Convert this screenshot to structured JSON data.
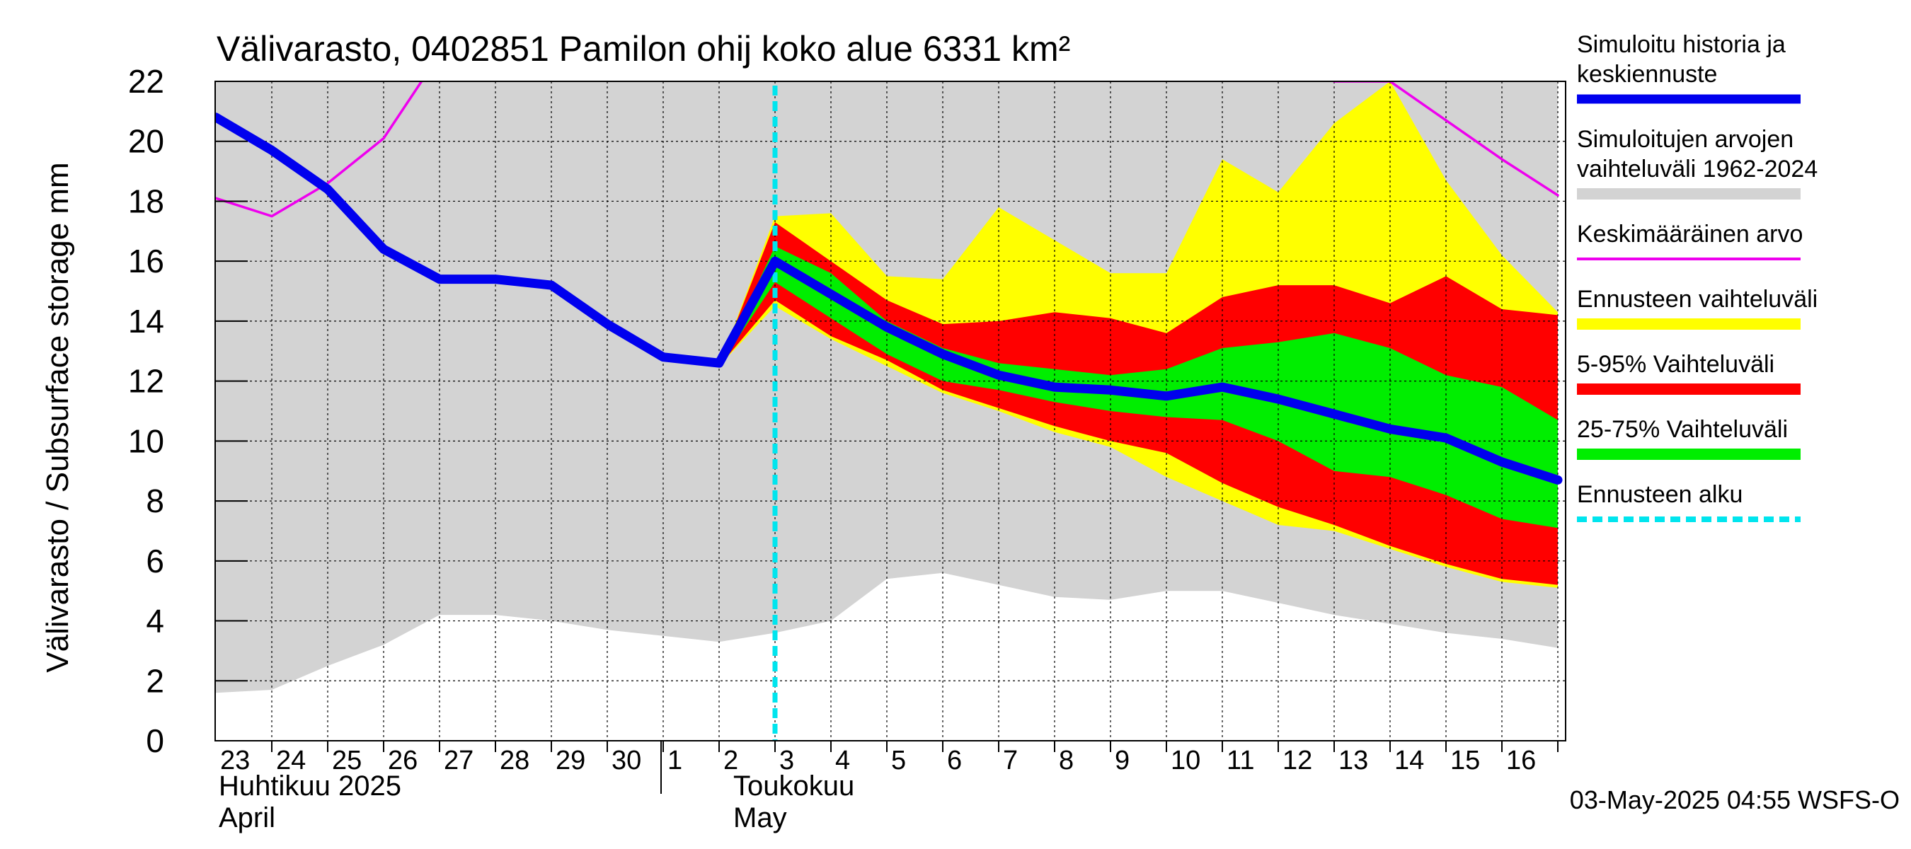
{
  "chart_data": {
    "type": "area",
    "title": "Välivarasto, 0402851 Pamilon ohij koko alue 6331 km²",
    "ylabel": "Välivarasto / Subsurface storage  mm",
    "ylim": [
      0,
      22
    ],
    "yticks": [
      0,
      2,
      4,
      6,
      8,
      10,
      12,
      14,
      16,
      18,
      20,
      22
    ],
    "grid": true,
    "legend_position": "right",
    "x_dates": [
      "2025-04-23",
      "2025-04-24",
      "2025-04-25",
      "2025-04-26",
      "2025-04-27",
      "2025-04-28",
      "2025-04-29",
      "2025-04-30",
      "2025-05-01",
      "2025-05-02",
      "2025-05-03",
      "2025-05-04",
      "2025-05-05",
      "2025-05-06",
      "2025-05-07",
      "2025-05-08",
      "2025-05-09",
      "2025-05-10",
      "2025-05-11",
      "2025-05-12",
      "2025-05-13",
      "2025-05-14",
      "2025-05-15",
      "2025-05-16",
      "2025-05-17"
    ],
    "day_labels": [
      "23",
      "24",
      "25",
      "26",
      "27",
      "28",
      "29",
      "30",
      "1",
      "2",
      "3",
      "4",
      "5",
      "6",
      "7",
      "8",
      "9",
      "10",
      "11",
      "12",
      "13",
      "14",
      "15",
      "16"
    ],
    "month_labels": [
      {
        "fi": "Huhtikuu  2025",
        "en": "April"
      },
      {
        "fi": "Toukokuu",
        "en": "May"
      }
    ],
    "forecast_start": "2025-05-03",
    "series": [
      {
        "name": "Simuloitujen arvojen vaihteluväli 1962-2024",
        "color": "#d3d3d3",
        "lower": [
          1.6,
          1.7,
          2.5,
          3.2,
          4.2,
          4.2,
          4.0,
          3.7,
          3.5,
          3.3,
          3.6,
          4.0,
          5.4,
          5.6,
          5.2,
          4.8,
          4.7,
          5.0,
          5.0,
          4.6,
          4.2,
          3.9,
          3.6,
          3.4,
          3.1
        ],
        "upper": [
          22,
          22,
          22,
          22,
          22,
          22,
          22,
          22,
          22,
          22,
          22,
          22,
          22,
          22,
          22,
          22,
          22,
          22,
          22,
          22,
          22,
          22,
          22,
          22,
          22
        ]
      },
      {
        "name": "Ennusteen vaihteluväli",
        "color": "#ffff00",
        "lower": [
          12.5,
          14.5,
          13.4,
          12.5,
          11.6,
          11.0,
          10.3,
          9.8,
          8.8,
          8.0,
          7.2,
          7.0,
          6.4,
          5.8,
          5.3,
          5.1
        ],
        "upper": [
          12.5,
          17.5,
          17.6,
          15.5,
          15.4,
          17.8,
          16.7,
          15.6,
          15.6,
          19.4,
          18.3,
          20.6,
          22.0,
          18.7,
          16.2,
          14.3
        ]
      },
      {
        "name": "5-95% Vaihteluväli",
        "color": "#ff0000",
        "lower": [
          12.5,
          14.7,
          13.5,
          12.7,
          11.7,
          11.1,
          10.5,
          10.0,
          9.6,
          8.6,
          7.8,
          7.2,
          6.5,
          5.9,
          5.4,
          5.2
        ],
        "upper": [
          12.5,
          17.3,
          16.0,
          14.7,
          13.9,
          14.0,
          14.3,
          14.1,
          13.6,
          14.8,
          15.2,
          15.2,
          14.6,
          15.5,
          14.4,
          14.2
        ]
      },
      {
        "name": "25-75% Vaihteluväli",
        "color": "#00ee00",
        "lower": [
          12.5,
          15.3,
          14.1,
          12.9,
          12.0,
          11.7,
          11.3,
          11.0,
          10.8,
          10.7,
          10.0,
          9.0,
          8.8,
          8.2,
          7.4,
          7.1
        ],
        "upper": [
          12.5,
          16.5,
          15.6,
          14.0,
          13.1,
          12.6,
          12.4,
          12.2,
          12.4,
          13.1,
          13.3,
          13.6,
          13.1,
          12.2,
          11.8,
          10.7
        ]
      },
      {
        "name": "Keskimääräinen arvo",
        "color": "#ee00ee",
        "values": [
          18.1,
          17.5,
          18.6,
          20.1,
          22.9,
          null,
          null,
          null,
          null,
          null,
          null,
          null,
          null,
          null,
          null,
          null,
          null,
          null,
          null,
          22.8,
          22.0,
          22.0,
          20.7,
          19.4,
          18.2
        ]
      },
      {
        "name": "Simuloitu historia ja keskiennuste",
        "color": "#0000ee",
        "values": [
          20.8,
          19.7,
          18.4,
          16.4,
          15.4,
          15.4,
          15.2,
          13.9,
          12.8,
          12.6,
          16.0,
          14.9,
          13.8,
          12.9,
          12.2,
          11.8,
          11.7,
          11.5,
          11.8,
          11.4,
          10.9,
          10.4,
          10.1,
          9.3,
          8.7
        ]
      }
    ],
    "legend": [
      {
        "lines": [
          "Simuloitu historia ja",
          "keskiennuste"
        ],
        "color": "#0000ee",
        "style": "thick"
      },
      {
        "lines": [
          "Simuloitujen arvojen",
          "vaihteluväli 1962-2024"
        ],
        "color": "#d3d3d3",
        "style": "band"
      },
      {
        "lines": [
          "Keskimääräinen arvo"
        ],
        "color": "#ee00ee",
        "style": "thin"
      },
      {
        "lines": [
          "Ennusteen vaihteluväli"
        ],
        "color": "#ffff00",
        "style": "band"
      },
      {
        "lines": [
          "5-95% Vaihteluväli"
        ],
        "color": "#ff0000",
        "style": "band"
      },
      {
        "lines": [
          "25-75% Vaihteluväli"
        ],
        "color": "#00ee00",
        "style": "band"
      },
      {
        "lines": [
          "Ennusteen alku"
        ],
        "color": "#00e5ee",
        "style": "dashed"
      }
    ],
    "footer": "03-May-2025 04:55 WSFS-O"
  }
}
